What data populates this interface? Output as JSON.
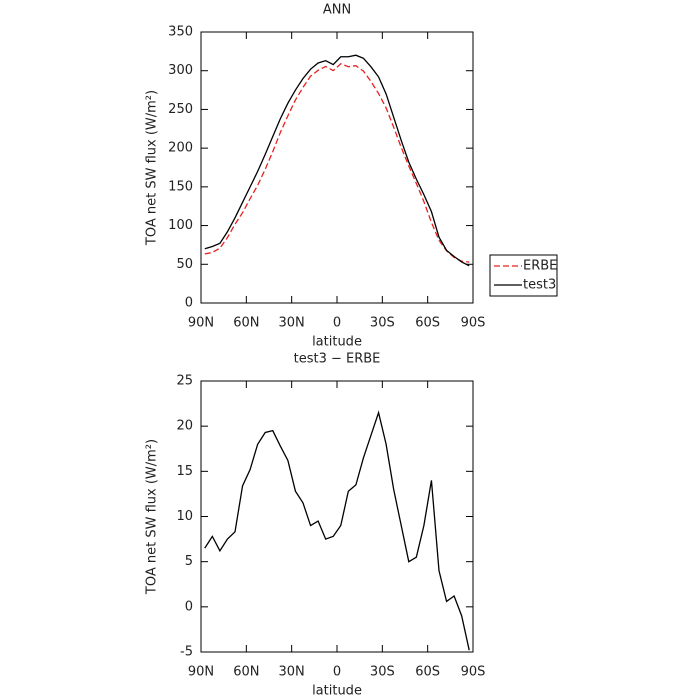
{
  "chart_data": [
    {
      "type": "line",
      "title": "ANN",
      "xlabel": "latitude",
      "ylabel": "TOA net SW flux (W/m²)",
      "x": [
        87.5,
        82.5,
        77.5,
        72.5,
        67.5,
        62.5,
        57.5,
        52.5,
        47.5,
        42.5,
        37.5,
        32.5,
        27.5,
        22.5,
        17.5,
        12.5,
        7.5,
        2.5,
        -2.5,
        -7.5,
        -12.5,
        -17.5,
        -22.5,
        -27.5,
        -32.5,
        -37.5,
        -42.5,
        -47.5,
        -52.5,
        -57.5,
        -62.5,
        -67.5,
        -72.5,
        -77.5,
        -82.5,
        -87.5
      ],
      "series": [
        {
          "name": "ERBE",
          "color": "#e8211e",
          "dash": "dashed",
          "values": [
            63.5,
            65.2,
            70.8,
            84.5,
            101.7,
            116.6,
            134.8,
            152,
            172.7,
            195.5,
            220.2,
            241.8,
            262.2,
            278.5,
            293,
            300.5,
            305.5,
            300.2,
            309,
            305.2,
            306.5,
            299.5,
            286,
            270.5,
            252,
            227,
            201,
            177,
            154.5,
            131,
            104,
            81,
            67.4,
            58.8,
            54,
            52.8
          ]
        },
        {
          "name": "test3",
          "color": "#000000",
          "dash": "solid",
          "values": [
            70,
            73,
            77,
            92,
            110,
            130,
            150,
            170,
            192,
            215,
            238,
            258,
            275,
            290,
            302,
            310,
            313,
            308,
            318,
            318,
            320,
            316,
            305,
            292,
            270,
            240,
            210,
            182,
            160,
            140,
            118,
            85,
            68,
            60,
            53,
            48
          ]
        }
      ],
      "xlim": [
        90,
        -90
      ],
      "xticks": [
        {
          "value": 90,
          "label": "90N"
        },
        {
          "value": 60,
          "label": "60N"
        },
        {
          "value": 30,
          "label": "30N"
        },
        0,
        {
          "value": -30,
          "label": "30S"
        },
        {
          "value": -60,
          "label": "60S"
        },
        {
          "value": -90,
          "label": "90S"
        }
      ],
      "ylim": [
        0,
        350
      ],
      "yticks": [
        0,
        50,
        100,
        150,
        200,
        250,
        300,
        350
      ],
      "legend": "right"
    },
    {
      "type": "line",
      "title": "test3 − ERBE",
      "xlabel": "latitude",
      "ylabel": "TOA net SW flux (W/m²)",
      "x": [
        87.5,
        82.5,
        77.5,
        72.5,
        67.5,
        62.5,
        57.5,
        52.5,
        47.5,
        42.5,
        37.5,
        32.5,
        27.5,
        22.5,
        17.5,
        12.5,
        7.5,
        2.5,
        -2.5,
        -7.5,
        -12.5,
        -17.5,
        -22.5,
        -27.5,
        -32.5,
        -37.5,
        -42.5,
        -47.5,
        -52.5,
        -57.5,
        -62.5,
        -67.5,
        -72.5,
        -77.5,
        -82.5,
        -87.5
      ],
      "color": "#000000",
      "values": [
        6.5,
        7.8,
        6.2,
        7.5,
        8.3,
        13.4,
        15.2,
        18,
        19.3,
        19.5,
        17.8,
        16.2,
        12.8,
        11.5,
        9,
        9.5,
        7.5,
        7.8,
        9,
        12.8,
        13.5,
        16.5,
        19,
        21.5,
        18,
        13,
        9,
        5,
        5.5,
        9,
        14,
        4,
        0.6,
        1.2,
        -1,
        -4.8
      ],
      "xlim": [
        90,
        -90
      ],
      "xticks": [
        {
          "value": 90,
          "label": "90N"
        },
        {
          "value": 60,
          "label": "60N"
        },
        {
          "value": 30,
          "label": "30N"
        },
        0,
        {
          "value": -30,
          "label": "30S"
        },
        {
          "value": -60,
          "label": "60S"
        },
        {
          "value": -90,
          "label": "90S"
        }
      ],
      "ylim": [
        -5,
        25
      ],
      "yticks": [
        -5,
        0,
        5,
        10,
        15,
        20,
        25
      ]
    }
  ]
}
